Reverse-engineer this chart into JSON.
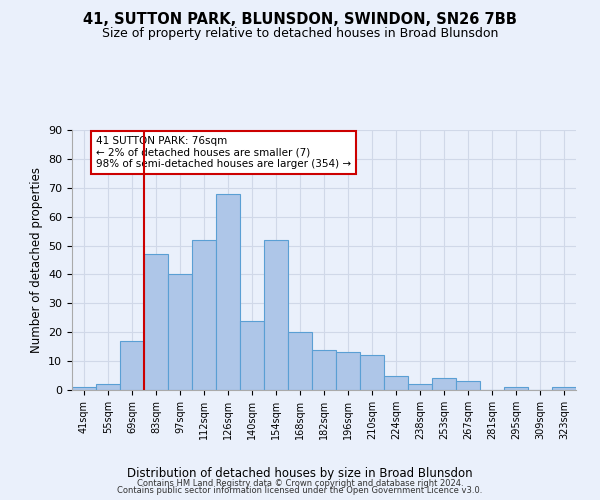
{
  "title1": "41, SUTTON PARK, BLUNSDON, SWINDON, SN26 7BB",
  "title2": "Size of property relative to detached houses in Broad Blunsdon",
  "xlabel": "Distribution of detached houses by size in Broad Blunsdon",
  "ylabel": "Number of detached properties",
  "bin_labels": [
    "41sqm",
    "55sqm",
    "69sqm",
    "83sqm",
    "97sqm",
    "112sqm",
    "126sqm",
    "140sqm",
    "154sqm",
    "168sqm",
    "182sqm",
    "196sqm",
    "210sqm",
    "224sqm",
    "238sqm",
    "253sqm",
    "267sqm",
    "281sqm",
    "295sqm",
    "309sqm",
    "323sqm"
  ],
  "bar_values": [
    1,
    2,
    17,
    47,
    40,
    52,
    68,
    24,
    52,
    20,
    14,
    13,
    12,
    5,
    2,
    4,
    3,
    0,
    1,
    0,
    1
  ],
  "bar_color": "#aec6e8",
  "bar_edge_color": "#5a9fd4",
  "grid_color": "#d0d8e8",
  "bg_color": "#eaf0fb",
  "red_line_x": 2.5,
  "annotation_text": "41 SUTTON PARK: 76sqm\n← 2% of detached houses are smaller (7)\n98% of semi-detached houses are larger (354) →",
  "annotation_box_color": "#ffffff",
  "annotation_box_edge": "#cc0000",
  "ylim": [
    0,
    90
  ],
  "yticks": [
    0,
    10,
    20,
    30,
    40,
    50,
    60,
    70,
    80,
    90
  ],
  "footer1": "Contains HM Land Registry data © Crown copyright and database right 2024.",
  "footer2": "Contains public sector information licensed under the Open Government Licence v3.0."
}
